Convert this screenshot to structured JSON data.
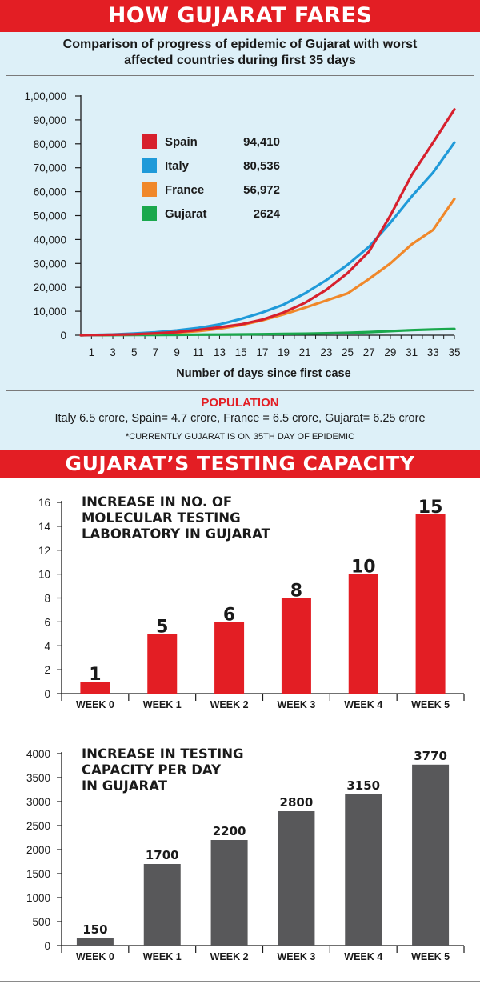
{
  "banner_top": "HOW GUJARAT FARES",
  "subtitle_line1": "Comparison of progress of epidemic of Gujarat with worst",
  "subtitle_line2": "affected countries during first 35 days",
  "population": {
    "heading": "POPULATION",
    "text": "Italy 6.5 crore, Spain= 4.7 crore, France = 6.5 crore, Gujarat= 6.25 crore",
    "note": "*CURRENTLY GUJARAT IS ON 35TH  DAY OF EPIDEMIC"
  },
  "banner_bottom": "GUJARAT’S TESTING CAPACITY",
  "chart_data": [
    {
      "type": "line",
      "xlabel": "Number of days since first case",
      "ylabel": "",
      "xlim": [
        0,
        35
      ],
      "ylim": [
        0,
        100000
      ],
      "x_ticks": [
        1,
        3,
        5,
        7,
        9,
        11,
        13,
        15,
        17,
        19,
        21,
        23,
        25,
        27,
        29,
        31,
        33,
        35
      ],
      "y_ticks": [
        "0",
        "10,000",
        "20,000",
        "30,000",
        "40,000",
        "50,000",
        "60,000",
        "70,000",
        "80,000",
        "90,000",
        "1,00,000"
      ],
      "y_tick_values": [
        0,
        10000,
        20000,
        30000,
        40000,
        50000,
        60000,
        70000,
        80000,
        90000,
        100000
      ],
      "legend_position": "upper-left",
      "x": [
        0,
        1,
        3,
        5,
        7,
        9,
        11,
        13,
        15,
        17,
        19,
        21,
        23,
        25,
        27,
        29,
        31,
        33,
        35
      ],
      "series": [
        {
          "name": "Spain",
          "legend_value": "94,410",
          "color": "#d7202d",
          "values": [
            0,
            100,
            200,
            400,
            800,
            1300,
            2200,
            3300,
            4500,
            6500,
            9500,
            13500,
            19000,
            26000,
            35000,
            50000,
            67000,
            80500,
            94410
          ]
        },
        {
          "name": "Italy",
          "legend_value": "80,536",
          "color": "#1f9ad9",
          "values": [
            0,
            100,
            300,
            700,
            1200,
            2000,
            3000,
            4500,
            6800,
            9500,
            12800,
            17500,
            23000,
            29500,
            37000,
            47000,
            58000,
            68000,
            80536
          ]
        },
        {
          "name": "France",
          "legend_value": "56,972",
          "color": "#f0882a",
          "values": [
            0,
            100,
            200,
            400,
            700,
            1100,
            1700,
            2700,
            4200,
            6200,
            8700,
            11500,
            14500,
            17500,
            23500,
            30000,
            38000,
            44000,
            56972
          ]
        },
        {
          "name": "Gujarat",
          "legend_value": "2624",
          "color": "#1aa84d",
          "values": [
            0,
            50,
            80,
            100,
            130,
            170,
            220,
            280,
            350,
            420,
            520,
            650,
            800,
            1000,
            1300,
            1700,
            2100,
            2400,
            2624
          ]
        }
      ]
    },
    {
      "type": "bar",
      "title_lines": [
        "INCREASE IN NO. OF",
        "MOLECULAR TESTING",
        "LABORATORY IN GUJARAT"
      ],
      "categories": [
        "WEEK 0",
        "WEEK 1",
        "WEEK 2",
        "WEEK 3",
        "WEEK 4",
        "WEEK 5"
      ],
      "values": [
        1,
        5,
        6,
        8,
        10,
        15
      ],
      "labels": [
        "1",
        "5",
        "6",
        "8",
        "10",
        "15"
      ],
      "ylim": [
        0,
        16
      ],
      "y_ticks": [
        0,
        2,
        4,
        6,
        8,
        10,
        12,
        14,
        16
      ],
      "color": "#e31e24"
    },
    {
      "type": "bar",
      "title_lines": [
        "INCREASE IN TESTING",
        "CAPACITY PER DAY",
        "IN GUJARAT"
      ],
      "categories": [
        "WEEK 0",
        "WEEK 1",
        "WEEK 2",
        "WEEK 3",
        "WEEK 4",
        "WEEK 5"
      ],
      "values": [
        150,
        1700,
        2200,
        2800,
        3150,
        3770
      ],
      "labels": [
        "150",
        "1700",
        "2200",
        "2800",
        "3150",
        "3770"
      ],
      "ylim": [
        0,
        4000
      ],
      "y_ticks": [
        0,
        500,
        1000,
        1500,
        2000,
        2500,
        3000,
        3500,
        4000
      ],
      "color": "#58585a"
    }
  ]
}
